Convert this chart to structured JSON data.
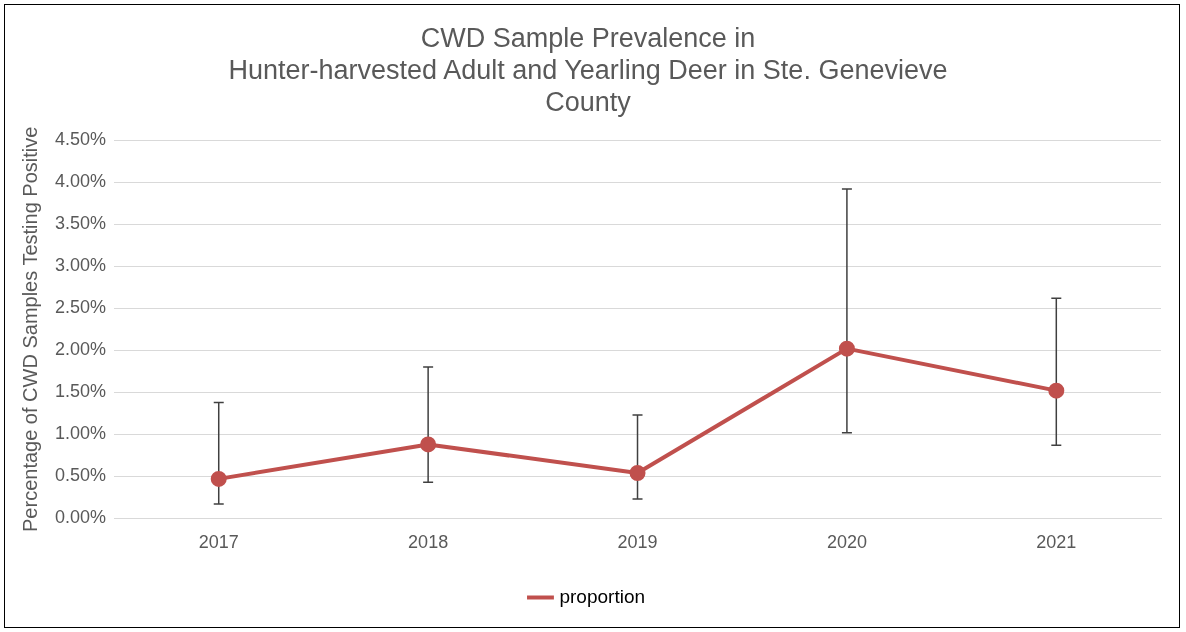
{
  "chart_data": {
    "type": "line",
    "title": "CWD Sample Prevalence in\nHunter-harvested Adult and Yearling Deer in Ste. Genevieve\nCounty",
    "ylabel": "Percentage of CWD Samples Testing Positive",
    "categories": [
      "2017",
      "2018",
      "2019",
      "2020",
      "2021"
    ],
    "series": [
      {
        "name": "proportion",
        "color": "#c0504d",
        "values": [
          0.47,
          0.88,
          0.54,
          2.02,
          1.52
        ],
        "errors": [
          [
            0.17,
            1.38
          ],
          [
            0.43,
            1.8
          ],
          [
            0.23,
            1.23
          ],
          [
            1.02,
            3.92
          ],
          [
            0.87,
            2.62
          ]
        ]
      }
    ],
    "ylim": [
      0,
      4.5
    ],
    "yticks": [
      {
        "value": 0,
        "label": "0.00%"
      },
      {
        "value": 0.5,
        "label": "0.50%"
      },
      {
        "value": 1,
        "label": "1.00%"
      },
      {
        "value": 1.5,
        "label": "1.50%"
      },
      {
        "value": 2,
        "label": "2.00%"
      },
      {
        "value": 2.5,
        "label": "2.50%"
      },
      {
        "value": 3,
        "label": "3.00%"
      },
      {
        "value": 3.5,
        "label": "3.50%"
      },
      {
        "value": 4,
        "label": "4.00%"
      },
      {
        "value": 4.5,
        "label": "4.50%"
      }
    ],
    "grid": "y",
    "legend": "bottom",
    "marker": "circle",
    "line_style": "solid"
  }
}
